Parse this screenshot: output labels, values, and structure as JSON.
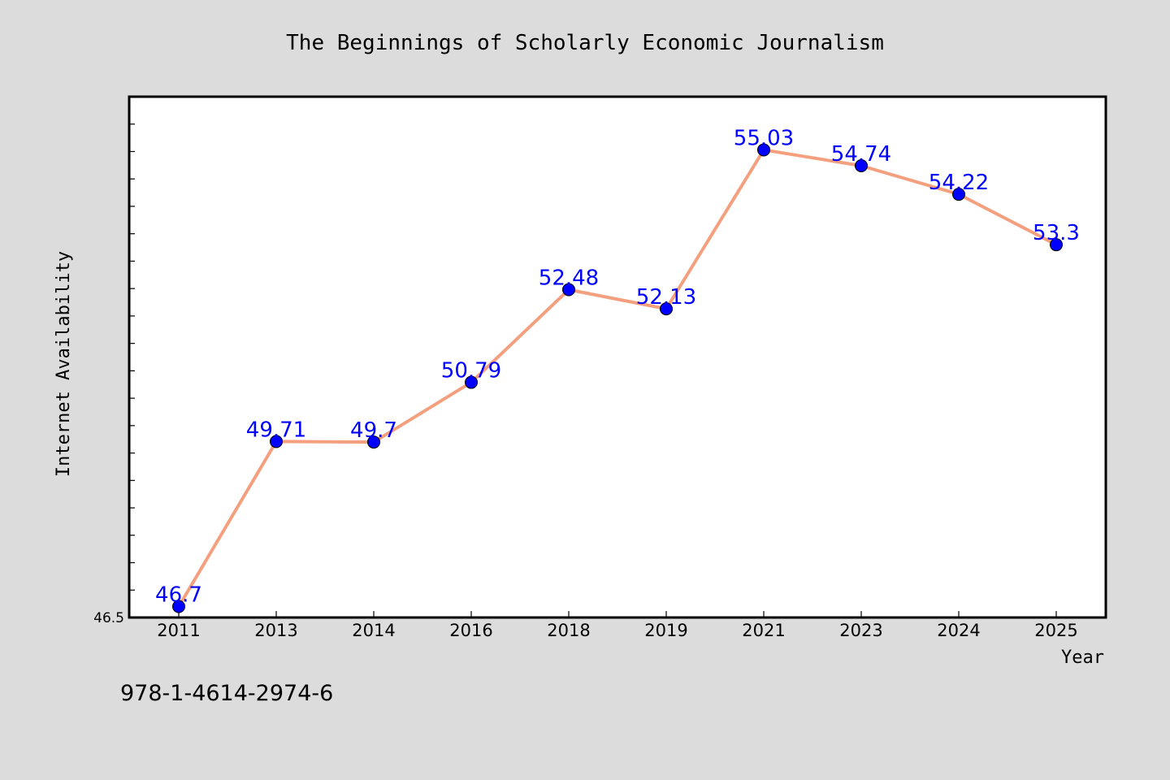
{
  "chart_data": {
    "type": "line",
    "title": "The Beginnings of Scholarly Economic Journalism",
    "xlabel": "Year",
    "ylabel": "Internet Availability",
    "categories": [
      "2011",
      "2013",
      "2014",
      "2016",
      "2018",
      "2019",
      "2021",
      "2023",
      "2024",
      "2025"
    ],
    "series": [
      {
        "values": [
          46.7,
          49.71,
          49.7,
          50.79,
          52.48,
          52.13,
          55.03,
          54.74,
          54.22,
          53.3
        ]
      }
    ],
    "data_labels": [
      "46.7",
      "49.71",
      "49.7",
      "50.79",
      "52.48",
      "52.13",
      "55.03",
      "54.74",
      "54.22",
      "53.3"
    ],
    "y_tick_labels": [
      "46.5"
    ],
    "ylim": [
      46.5,
      56.0
    ],
    "grid": false,
    "legend": "none",
    "colors": {
      "line": "#f4a07e",
      "marker": "#0000ff",
      "label": "#0000ff",
      "background": "#dcdcdc",
      "plot_area": "#ffffff"
    }
  },
  "footer": {
    "code": "978-1-4614-2974-6"
  }
}
